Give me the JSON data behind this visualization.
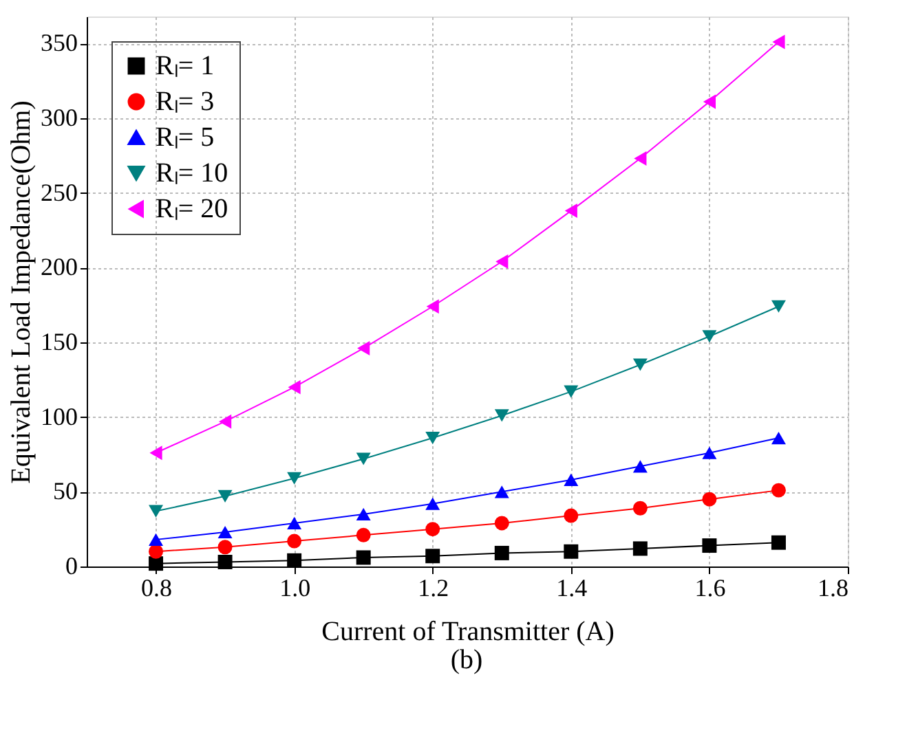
{
  "chart_data": {
    "type": "line",
    "xlabel": "Current of Transmitter (A)",
    "ylabel": "Equivalent Load Impedance(Ohm)",
    "annotations": [
      "(b)"
    ],
    "x": [
      0.8,
      0.9,
      1.0,
      1.1,
      1.2,
      1.3,
      1.4,
      1.5,
      1.6,
      1.7
    ],
    "series": [
      {
        "name": "Rₗ= 1",
        "color": "#000000",
        "marker": "square",
        "values": [
          2,
          3,
          4,
          6,
          7,
          9,
          10,
          12,
          14,
          16
        ]
      },
      {
        "name": "Rₗ= 3",
        "color": "#ff0000",
        "marker": "circle",
        "values": [
          10,
          13,
          17,
          21,
          25,
          29,
          34,
          39,
          45,
          51
        ]
      },
      {
        "name": "Rₗ= 5",
        "color": "#0000ff",
        "marker": "triangle",
        "values": [
          18,
          23,
          29,
          35,
          42,
          50,
          58,
          67,
          76,
          86
        ]
      },
      {
        "name": "Rₗ= 10",
        "color": "#008080",
        "marker": "triangle-down",
        "values": [
          37,
          47,
          59,
          72,
          86,
          101,
          117,
          135,
          154,
          174
        ]
      },
      {
        "name": "Rₗ= 20",
        "color": "#ff00ff",
        "marker": "triangle-left",
        "values": [
          76,
          97,
          120,
          146,
          174,
          204,
          238,
          273,
          311,
          351
        ]
      }
    ],
    "xlim": [
      0.7,
      1.8
    ],
    "xticks": [
      {
        "value": 0.8,
        "label": "0.8"
      },
      {
        "value": 1.0,
        "label": "1.0"
      },
      {
        "value": 1.2,
        "label": "1.2"
      },
      {
        "value": 1.4,
        "label": "1.4"
      },
      {
        "value": 1.6,
        "label": "1.6"
      },
      {
        "value": 1.8,
        "label": "1.8"
      }
    ],
    "ylim": [
      0,
      368
    ],
    "yticks": [
      0,
      50,
      100,
      150,
      200,
      250,
      300,
      350
    ],
    "grid": true,
    "legend": "top left",
    "line_style": "solid"
  }
}
